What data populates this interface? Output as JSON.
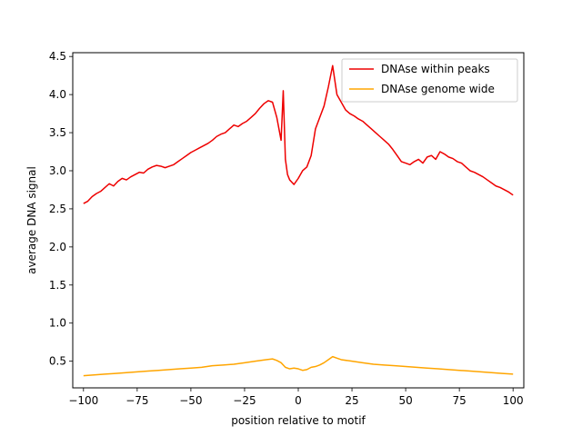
{
  "chart_data": {
    "type": "line",
    "title": "",
    "xlabel": "position relative to motif",
    "ylabel": "average DNA signal",
    "xlim": [
      -105,
      105
    ],
    "ylim": [
      0.15,
      4.55
    ],
    "xticks": [
      -100,
      -75,
      -50,
      -25,
      0,
      25,
      50,
      75,
      100
    ],
    "xtick_labels": [
      "−100",
      "−75",
      "−50",
      "−25",
      "0",
      "25",
      "50",
      "75",
      "100"
    ],
    "yticks": [
      0.5,
      1.0,
      1.5,
      2.0,
      2.5,
      3.0,
      3.5,
      4.0,
      4.5
    ],
    "ytick_labels": [
      "0.5",
      "1.0",
      "1.5",
      "2.0",
      "2.5",
      "3.0",
      "3.5",
      "4.0",
      "4.5"
    ],
    "grid": false,
    "legend_position": "top-right",
    "series": [
      {
        "name": "DNAse within peaks",
        "color": "#ee0000",
        "x": [
          -100,
          -98,
          -96,
          -94,
          -92,
          -90,
          -88,
          -86,
          -84,
          -82,
          -80,
          -78,
          -76,
          -74,
          -72,
          -70,
          -68,
          -66,
          -64,
          -62,
          -60,
          -58,
          -56,
          -54,
          -52,
          -50,
          -48,
          -46,
          -44,
          -42,
          -40,
          -38,
          -36,
          -34,
          -32,
          -30,
          -28,
          -26,
          -24,
          -22,
          -20,
          -18,
          -16,
          -14,
          -12,
          -10,
          -8,
          -7,
          -6,
          -5,
          -4,
          -2,
          0,
          2,
          4,
          6,
          8,
          10,
          12,
          14,
          16,
          18,
          20,
          22,
          24,
          26,
          28,
          30,
          32,
          34,
          36,
          38,
          40,
          42,
          44,
          46,
          48,
          50,
          52,
          54,
          56,
          58,
          60,
          62,
          64,
          66,
          68,
          70,
          72,
          74,
          76,
          78,
          80,
          82,
          84,
          86,
          88,
          90,
          92,
          94,
          96,
          98,
          100
        ],
        "values": [
          2.57,
          2.6,
          2.66,
          2.7,
          2.73,
          2.78,
          2.83,
          2.8,
          2.86,
          2.9,
          2.88,
          2.92,
          2.95,
          2.98,
          2.97,
          3.02,
          3.05,
          3.07,
          3.06,
          3.04,
          3.06,
          3.08,
          3.12,
          3.16,
          3.2,
          3.24,
          3.27,
          3.3,
          3.33,
          3.36,
          3.4,
          3.45,
          3.48,
          3.5,
          3.55,
          3.6,
          3.58,
          3.62,
          3.65,
          3.7,
          3.75,
          3.82,
          3.88,
          3.92,
          3.9,
          3.7,
          3.4,
          4.05,
          3.15,
          2.95,
          2.88,
          2.82,
          2.9,
          3.0,
          3.05,
          3.2,
          3.55,
          3.7,
          3.85,
          4.1,
          4.38,
          4.0,
          3.9,
          3.8,
          3.75,
          3.72,
          3.68,
          3.65,
          3.6,
          3.55,
          3.5,
          3.45,
          3.4,
          3.35,
          3.28,
          3.2,
          3.12,
          3.1,
          3.08,
          3.12,
          3.15,
          3.1,
          3.18,
          3.2,
          3.15,
          3.25,
          3.22,
          3.18,
          3.16,
          3.12,
          3.1,
          3.05,
          3.0,
          2.98,
          2.95,
          2.92,
          2.88,
          2.84,
          2.8,
          2.78,
          2.75,
          2.72,
          2.68
        ]
      },
      {
        "name": "DNAse genome wide",
        "color": "#ffa500",
        "x": [
          -100,
          -95,
          -90,
          -85,
          -80,
          -75,
          -70,
          -65,
          -60,
          -55,
          -50,
          -45,
          -40,
          -35,
          -30,
          -25,
          -20,
          -15,
          -12,
          -10,
          -8,
          -6,
          -4,
          -2,
          0,
          2,
          4,
          6,
          8,
          10,
          12,
          14,
          16,
          18,
          20,
          25,
          30,
          35,
          40,
          45,
          50,
          55,
          60,
          65,
          70,
          75,
          80,
          85,
          90,
          95,
          100
        ],
        "values": [
          0.31,
          0.32,
          0.33,
          0.34,
          0.35,
          0.36,
          0.37,
          0.38,
          0.39,
          0.4,
          0.41,
          0.42,
          0.44,
          0.45,
          0.46,
          0.48,
          0.5,
          0.52,
          0.53,
          0.51,
          0.48,
          0.42,
          0.4,
          0.41,
          0.4,
          0.38,
          0.39,
          0.42,
          0.43,
          0.45,
          0.48,
          0.52,
          0.56,
          0.54,
          0.52,
          0.5,
          0.48,
          0.46,
          0.45,
          0.44,
          0.43,
          0.42,
          0.41,
          0.4,
          0.39,
          0.38,
          0.37,
          0.36,
          0.35,
          0.34,
          0.33
        ]
      }
    ]
  }
}
